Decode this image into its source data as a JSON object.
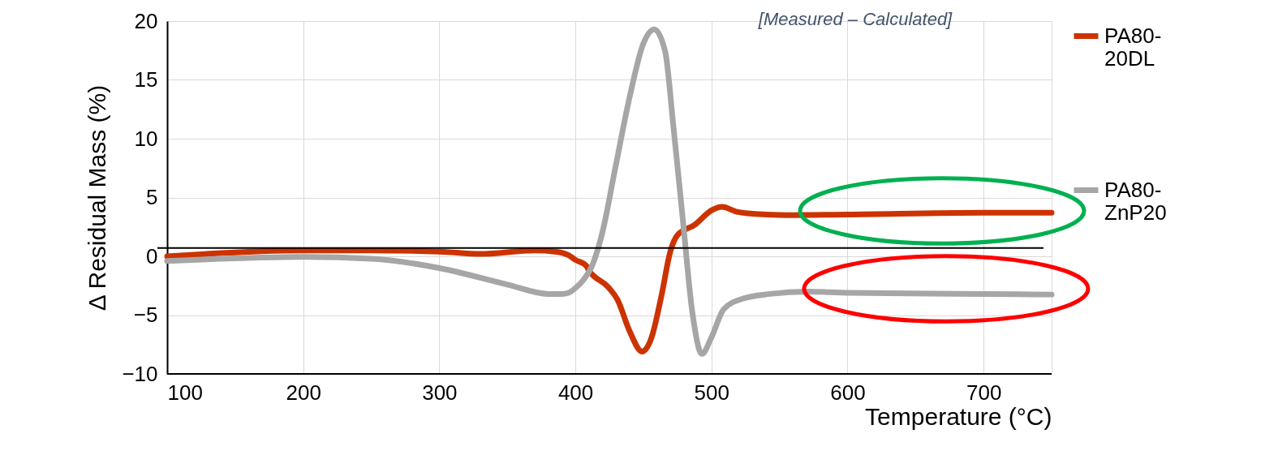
{
  "chart_data": {
    "type": "line",
    "xlabel": "Temperature (°C)",
    "ylabel": "Δ Residual Mass (%)",
    "annotations": [
      "[Measured – Calculated]"
    ],
    "xlim": [
      100,
      750
    ],
    "xticks": [
      100,
      200,
      300,
      400,
      500,
      600,
      700
    ],
    "ylim": [
      -10,
      20
    ],
    "yticks": [
      -10,
      -5,
      0,
      5,
      10,
      15,
      20
    ],
    "grid": true,
    "legend": "right",
    "line_style": "solid",
    "marker": "none",
    "ref_lines": [
      {
        "axis": "y",
        "value": 0.7,
        "color": "#000000"
      }
    ],
    "series": [
      {
        "name": "PA80-20DL",
        "color": "#cc3300",
        "x": [
          100,
          200,
          250,
          300,
          330,
          370,
          385,
          395,
          400,
          408,
          410,
          424,
          431,
          440,
          449,
          456,
          463,
          470,
          475,
          488,
          500,
          508,
          518,
          532,
          555,
          600,
          700,
          750
        ],
        "values": [
          0.0,
          0.5,
          0.5,
          0.4,
          0.2,
          0.5,
          0.4,
          0.1,
          -0.3,
          -0.8,
          -1.2,
          -2.6,
          -3.7,
          -6.4,
          -8.1,
          -6.9,
          -3.5,
          0.5,
          1.8,
          2.7,
          3.9,
          4.2,
          3.8,
          3.6,
          3.5,
          3.55,
          3.7,
          3.7
        ]
      },
      {
        "name": "PA80-ZnP20",
        "color": "#a6a6a6",
        "x": [
          100,
          200,
          250,
          300,
          350,
          380,
          390,
          395,
          400,
          406,
          413,
          420,
          429,
          440,
          450,
          458,
          466,
          472,
          479,
          486,
          493,
          500,
          509,
          523,
          543,
          571,
          600,
          700,
          750
        ],
        "values": [
          -0.4,
          -0.05,
          -0.2,
          -1.0,
          -2.4,
          -3.2,
          -3.2,
          -3.1,
          -2.7,
          -2.0,
          -0.6,
          2.1,
          7.3,
          13.6,
          18.1,
          19.3,
          17.4,
          11.1,
          3.1,
          -4.8,
          -8.3,
          -6.9,
          -4.5,
          -3.6,
          -3.2,
          -3.0,
          -3.1,
          -3.2,
          -3.25
        ]
      }
    ]
  }
}
